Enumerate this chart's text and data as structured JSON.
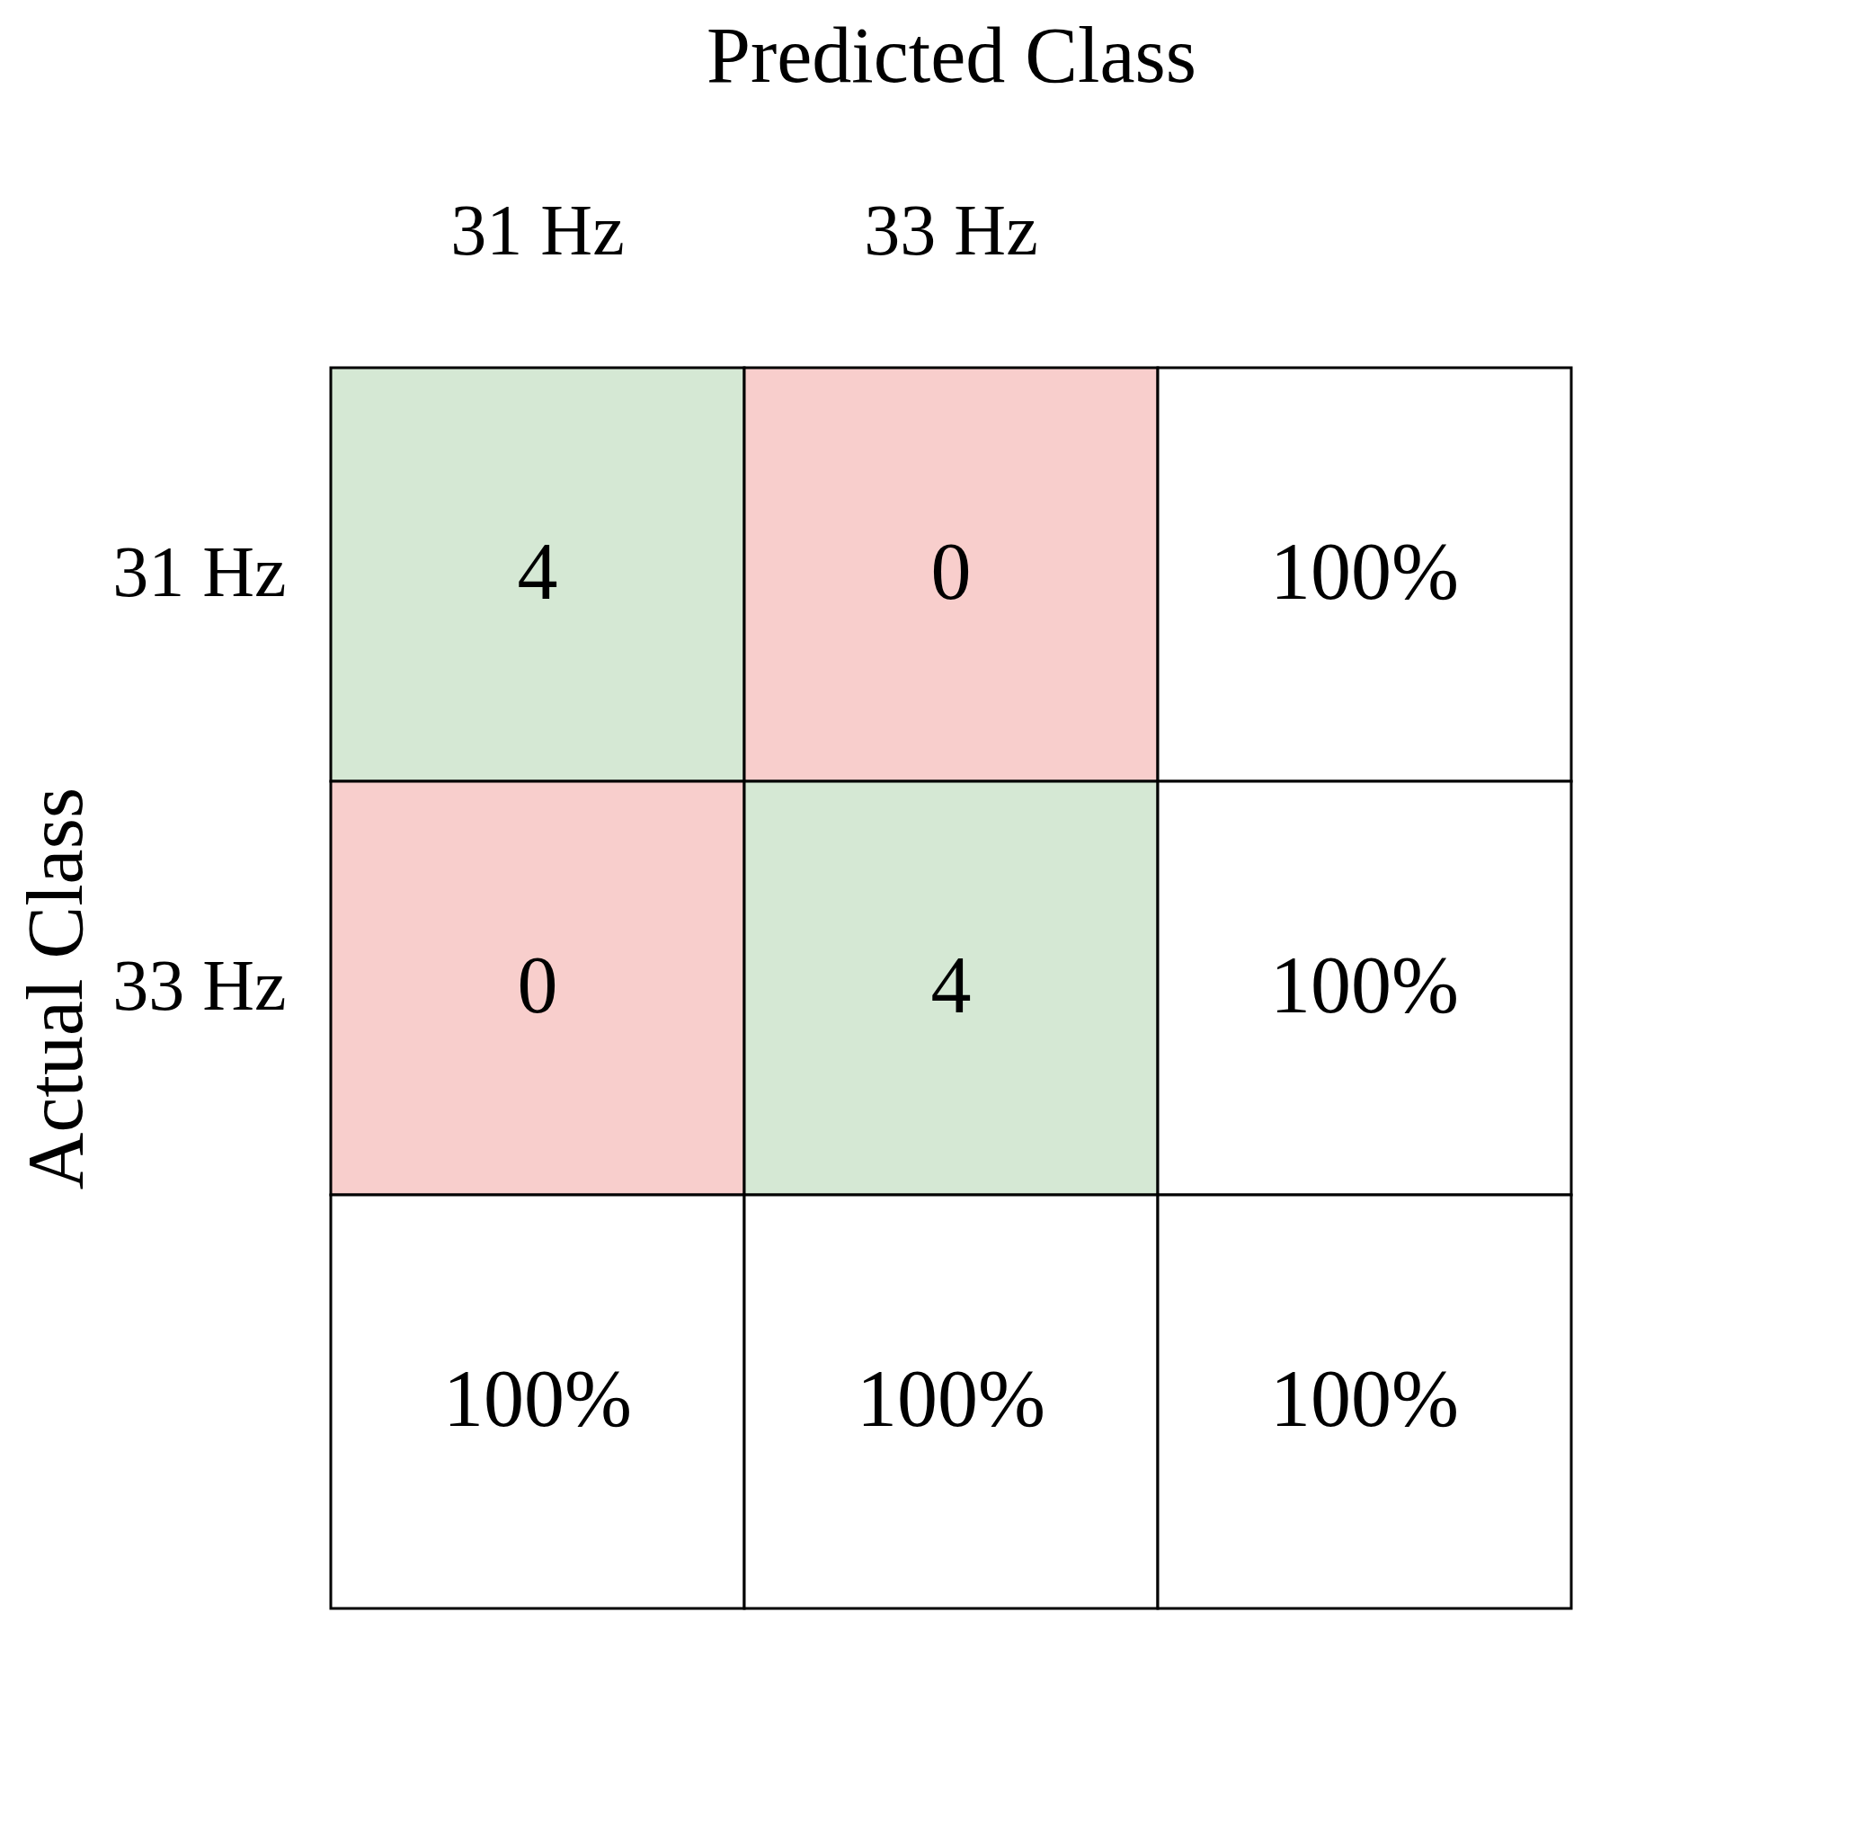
{
  "chart_data": {
    "type": "heatmap",
    "xlabel": "Predicted Class",
    "ylabel": "Actual Class",
    "categories": [
      "31 Hz",
      "33 Hz",
      null
    ],
    "y_categories": [
      "31 Hz",
      "33 Hz",
      null
    ],
    "cells": [
      [
        4,
        0,
        100
      ],
      [
        0,
        4,
        100
      ],
      [
        100,
        100,
        100
      ]
    ],
    "cell_labels": [
      [
        "4",
        "0",
        "100%"
      ],
      [
        "0",
        "4",
        "100%"
      ],
      [
        "100%",
        "100%",
        "100%"
      ]
    ],
    "colors": [
      [
        "#d5e8d4",
        "#f8cecc",
        "#ffffff"
      ],
      [
        "#f8cecc",
        "#d5e8d4",
        "#ffffff"
      ],
      [
        "#ffffff",
        "#ffffff",
        "#ffffff"
      ]
    ]
  }
}
